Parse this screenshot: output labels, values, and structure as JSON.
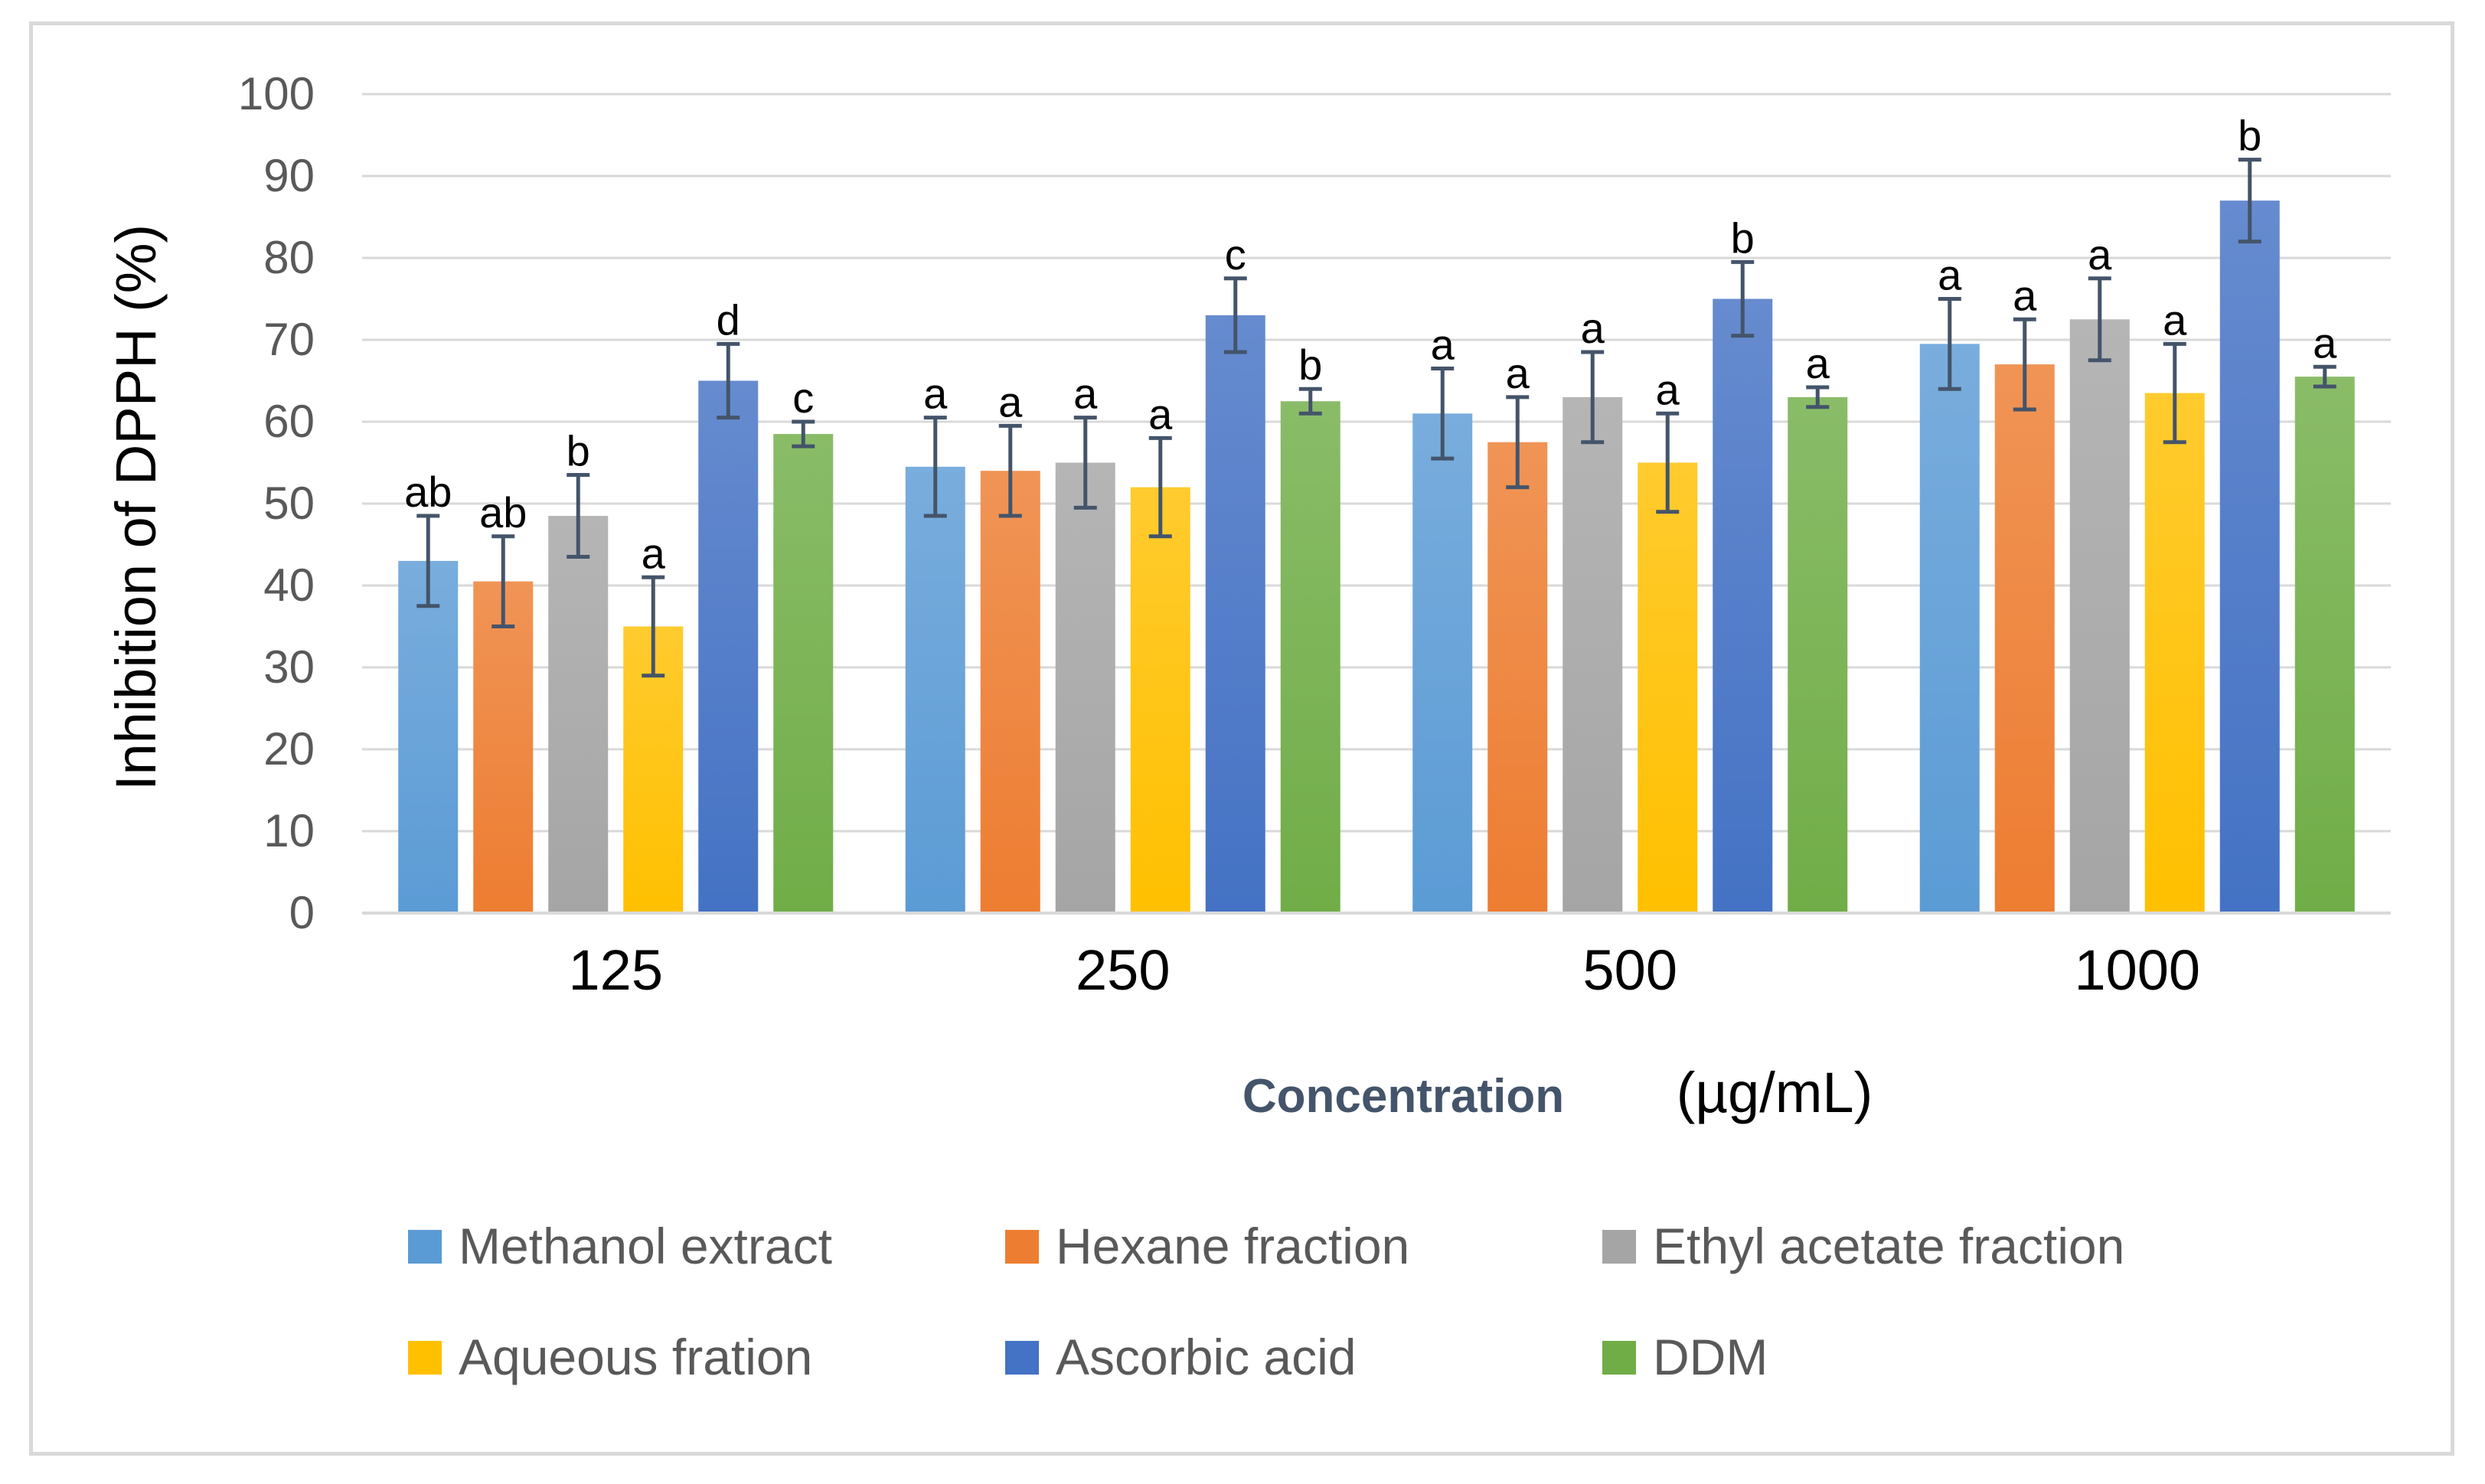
{
  "chart_data": {
    "type": "bar",
    "title": "",
    "ylabel": "Inhibition of DPPH (%)",
    "xlabel": "Concentration",
    "xlabel_unit": "(µg/mL)",
    "ylim": [
      0,
      100
    ],
    "yticks": [
      0,
      10,
      20,
      30,
      40,
      50,
      60,
      70,
      80,
      90,
      100
    ],
    "grid": true,
    "legend_position": "bottom",
    "categories": [
      "125",
      "250",
      "500",
      "1000"
    ],
    "series": [
      {
        "name": "Methanol extract",
        "color": "#5B9BD5",
        "values": [
          43,
          54.5,
          61,
          69.5
        ],
        "errors": [
          5.5,
          6,
          5.5,
          5.5
        ],
        "labels": [
          "ab",
          "a",
          "a",
          "a"
        ]
      },
      {
        "name": "Hexane fraction",
        "color": "#ED7D31",
        "values": [
          40.5,
          54,
          57.5,
          67
        ],
        "errors": [
          5.5,
          5.5,
          5.5,
          5.5
        ],
        "labels": [
          "ab",
          "a",
          "a",
          "a"
        ]
      },
      {
        "name": "Ethyl acetate fraction",
        "color": "#A5A5A5",
        "values": [
          48.5,
          55,
          63,
          72.5
        ],
        "errors": [
          5,
          5.5,
          5.5,
          5
        ],
        "labels": [
          "b",
          "a",
          "a",
          "a"
        ]
      },
      {
        "name": "Aqueous fration",
        "color": "#FFC000",
        "values": [
          35,
          52,
          55,
          63.5
        ],
        "errors": [
          6,
          6,
          6,
          6
        ],
        "labels": [
          "a",
          "a",
          "a",
          "a"
        ]
      },
      {
        "name": "Ascorbic acid",
        "color": "#4472C4",
        "values": [
          65,
          73,
          75,
          87
        ],
        "errors": [
          4.5,
          4.5,
          4.5,
          5
        ],
        "labels": [
          "d",
          "c",
          "b",
          "b"
        ]
      },
      {
        "name": "DDM",
        "color": "#70AD47",
        "values": [
          58.5,
          62.5,
          63,
          65.5
        ],
        "errors": [
          1.5,
          1.5,
          1.2,
          1.2
        ],
        "labels": [
          "c",
          "b",
          "a",
          "a"
        ]
      }
    ]
  }
}
